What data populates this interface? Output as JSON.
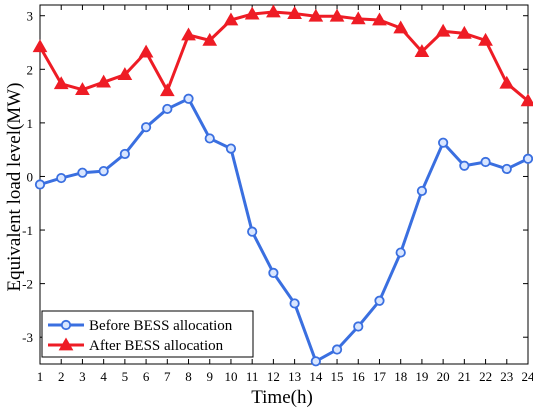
{
  "chart_data": {
    "type": "line",
    "xlabel": "Time(h)",
    "ylabel": "Equivalent load level(MW)",
    "xlim": [
      1,
      24
    ],
    "ylim": [
      -3.5,
      3.2
    ],
    "x": [
      1,
      2,
      3,
      4,
      5,
      6,
      7,
      8,
      9,
      10,
      11,
      12,
      13,
      14,
      15,
      16,
      17,
      18,
      19,
      20,
      21,
      22,
      23,
      24
    ],
    "x_ticks": [
      "1",
      "2",
      "3",
      "4",
      "5",
      "6",
      "7",
      "8",
      "9",
      "10",
      "11",
      "12",
      "13",
      "14",
      "15",
      "16",
      "17",
      "18",
      "19",
      "20",
      "21",
      "22",
      "23",
      "24"
    ],
    "y_ticks": [
      -3,
      -2,
      -1,
      0,
      1,
      2,
      3
    ],
    "y_tick_labels": [
      "-3",
      "-2",
      "-1",
      "0",
      "1",
      "2",
      "3"
    ],
    "grid": false,
    "legend_position": "bottom-left",
    "series": [
      {
        "name": "Before BESS allocation",
        "color": "#3a6fe0",
        "marker": "circle",
        "values": [
          -0.15,
          -0.03,
          0.07,
          0.1,
          0.42,
          0.92,
          1.26,
          1.45,
          0.71,
          0.52,
          -1.03,
          -1.8,
          -2.37,
          -3.45,
          -3.23,
          -2.8,
          -2.32,
          -1.42,
          -0.27,
          0.63,
          0.2,
          0.27,
          0.14,
          0.33
        ]
      },
      {
        "name": "After BESS allocation",
        "color": "#ee1c25",
        "marker": "triangle",
        "values": [
          2.42,
          1.73,
          1.62,
          1.76,
          1.9,
          2.32,
          1.6,
          2.64,
          2.54,
          2.92,
          3.03,
          3.07,
          3.04,
          2.99,
          2.99,
          2.94,
          2.92,
          2.77,
          2.33,
          2.71,
          2.67,
          2.54,
          1.74,
          1.41
        ]
      }
    ]
  }
}
